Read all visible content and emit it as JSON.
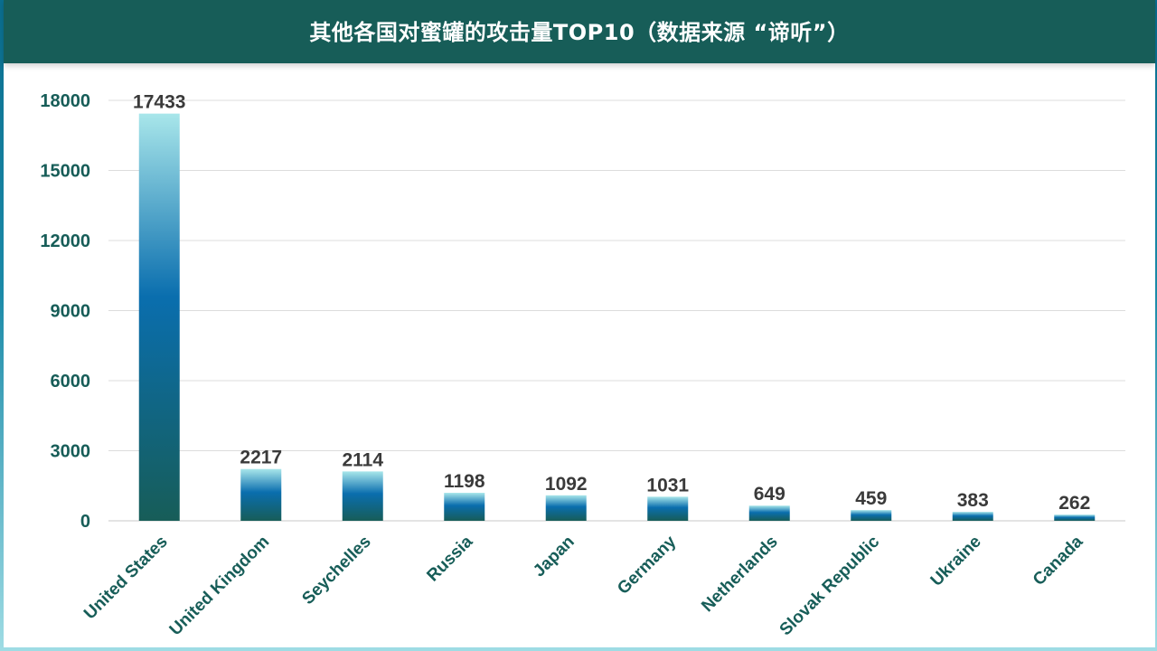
{
  "chart_data": {
    "type": "bar",
    "title": "其他各国对蜜罐的攻击量TOP10（数据来源 “谛听”）",
    "categories": [
      "United States",
      "United Kingdom",
      "Seychelles",
      "Russia",
      "Japan",
      "Germany",
      "Netherlands",
      "Slovak Republic",
      "Ukraine",
      "Canada"
    ],
    "values": [
      17433,
      2217,
      2114,
      1198,
      1092,
      1031,
      649,
      459,
      383,
      262
    ],
    "yticks": [
      0,
      3000,
      6000,
      9000,
      12000,
      15000,
      18000
    ],
    "ylim": [
      0,
      18000
    ],
    "grid": true,
    "legend": "none",
    "colors": {
      "header": "#175d58",
      "axis_text": "#175d58",
      "value_text": "#3a3a3a",
      "bar_top": "#a8e6ea",
      "bar_mid": "#0a6eae",
      "bar_bottom": "#175d58",
      "grid": "#dcdcdc"
    }
  }
}
